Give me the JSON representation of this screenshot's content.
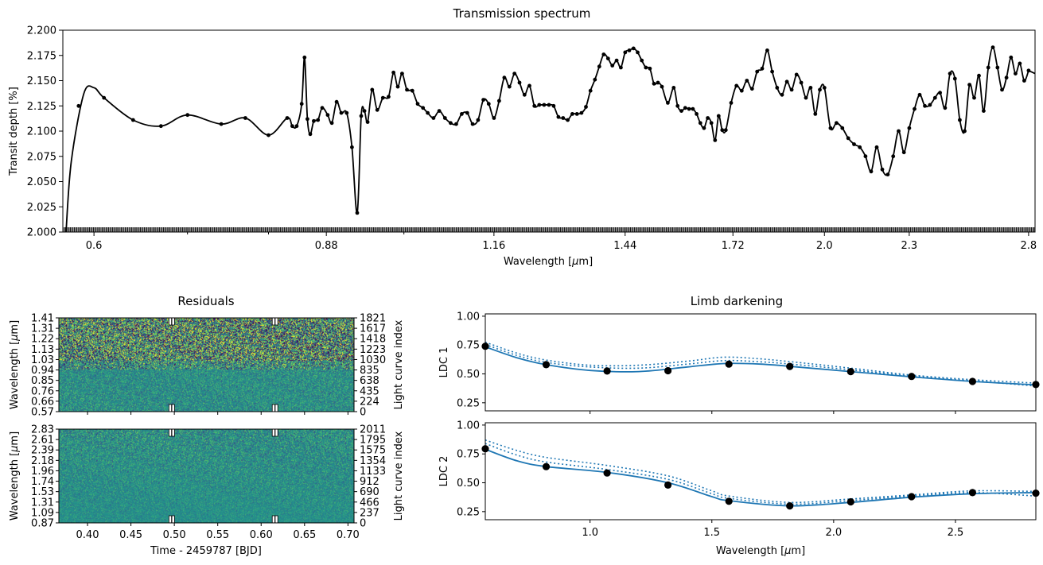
{
  "colors": {
    "spectrum": "#000000",
    "ldc_line": "#1f77b4",
    "ldc_points": "#000000",
    "residual_low": "#440154",
    "residual_mid": "#21918c",
    "residual_high": "#fde725"
  },
  "chart_data": [
    {
      "name": "transmission-spectrum",
      "type": "line",
      "title": "Transmission spectrum",
      "xlabel": "Wavelength [$\\mu$m]",
      "ylabel": "Transit depth [%]",
      "x_scale": "log",
      "xlim": [
        0.57,
        2.83
      ],
      "ylim": [
        2.0,
        2.2
      ],
      "x_ticks": [
        "0.6",
        "0.88",
        "1.16",
        "1.44",
        "1.72",
        "2.0",
        "2.3",
        "2.8"
      ],
      "x_tick_values": [
        0.6,
        0.88,
        1.16,
        1.44,
        1.72,
        2.0,
        2.3,
        2.8
      ],
      "y_ticks": [
        "2.000",
        "2.025",
        "2.050",
        "2.075",
        "2.100",
        "2.125",
        "2.150",
        "2.175",
        "2.200"
      ],
      "points": [
        [
          0.585,
          2.125
        ],
        [
          0.61,
          2.133
        ],
        [
          0.64,
          2.111
        ],
        [
          0.67,
          2.105
        ],
        [
          0.7,
          2.116
        ],
        [
          0.74,
          2.107
        ],
        [
          0.77,
          2.113
        ],
        [
          0.8,
          2.096
        ],
        [
          0.825,
          2.113
        ],
        [
          0.832,
          2.105
        ],
        [
          0.838,
          2.105
        ],
        [
          0.845,
          2.127
        ],
        [
          0.849,
          2.173
        ],
        [
          0.853,
          2.112
        ],
        [
          0.857,
          2.097
        ],
        [
          0.862,
          2.11
        ],
        [
          0.868,
          2.111
        ],
        [
          0.874,
          2.123
        ],
        [
          0.882,
          2.116
        ],
        [
          0.888,
          2.108
        ],
        [
          0.895,
          2.129
        ],
        [
          0.902,
          2.118
        ],
        [
          0.91,
          2.118
        ],
        [
          0.918,
          2.084
        ],
        [
          0.926,
          2.019
        ],
        [
          0.932,
          2.115
        ],
        [
          0.937,
          2.12
        ],
        [
          0.942,
          2.109
        ],
        [
          0.949,
          2.141
        ],
        [
          0.957,
          2.121
        ],
        [
          0.966,
          2.133
        ],
        [
          0.975,
          2.134
        ],
        [
          0.983,
          2.158
        ],
        [
          0.99,
          2.144
        ],
        [
          0.997,
          2.157
        ],
        [
          1.005,
          2.141
        ],
        [
          1.014,
          2.14
        ],
        [
          1.023,
          2.127
        ],
        [
          1.032,
          2.123
        ],
        [
          1.04,
          2.118
        ],
        [
          1.05,
          2.113
        ],
        [
          1.06,
          2.12
        ],
        [
          1.07,
          2.113
        ],
        [
          1.08,
          2.108
        ],
        [
          1.09,
          2.107
        ],
        [
          1.1,
          2.117
        ],
        [
          1.11,
          2.118
        ],
        [
          1.12,
          2.107
        ],
        [
          1.13,
          2.111
        ],
        [
          1.14,
          2.131
        ],
        [
          1.15,
          2.127
        ],
        [
          1.16,
          2.113
        ],
        [
          1.17,
          2.13
        ],
        [
          1.18,
          2.153
        ],
        [
          1.19,
          2.144
        ],
        [
          1.2,
          2.157
        ],
        [
          1.21,
          2.148
        ],
        [
          1.22,
          2.136
        ],
        [
          1.23,
          2.145
        ],
        [
          1.24,
          2.125
        ],
        [
          1.25,
          2.126
        ],
        [
          1.26,
          2.126
        ],
        [
          1.27,
          2.126
        ],
        [
          1.28,
          2.125
        ],
        [
          1.29,
          2.114
        ],
        [
          1.3,
          2.113
        ],
        [
          1.31,
          2.111
        ],
        [
          1.32,
          2.117
        ],
        [
          1.33,
          2.117
        ],
        [
          1.34,
          2.118
        ],
        [
          1.35,
          2.124
        ],
        [
          1.36,
          2.14
        ],
        [
          1.37,
          2.151
        ],
        [
          1.38,
          2.164
        ],
        [
          1.39,
          2.176
        ],
        [
          1.4,
          2.172
        ],
        [
          1.41,
          2.165
        ],
        [
          1.42,
          2.17
        ],
        [
          1.43,
          2.163
        ],
        [
          1.44,
          2.178
        ],
        [
          1.45,
          2.18
        ],
        [
          1.46,
          2.182
        ],
        [
          1.47,
          2.178
        ],
        [
          1.48,
          2.17
        ],
        [
          1.49,
          2.163
        ],
        [
          1.5,
          2.162
        ],
        [
          1.51,
          2.147
        ],
        [
          1.52,
          2.148
        ],
        [
          1.53,
          2.144
        ],
        [
          1.545,
          2.128
        ],
        [
          1.56,
          2.143
        ],
        [
          1.57,
          2.125
        ],
        [
          1.58,
          2.12
        ],
        [
          1.59,
          2.123
        ],
        [
          1.6,
          2.122
        ],
        [
          1.61,
          2.122
        ],
        [
          1.62,
          2.117
        ],
        [
          1.63,
          2.108
        ],
        [
          1.64,
          2.103
        ],
        [
          1.65,
          2.113
        ],
        [
          1.66,
          2.108
        ],
        [
          1.67,
          2.091
        ],
        [
          1.68,
          2.115
        ],
        [
          1.69,
          2.101
        ],
        [
          1.7,
          2.101
        ],
        [
          1.715,
          2.128
        ],
        [
          1.73,
          2.145
        ],
        [
          1.745,
          2.14
        ],
        [
          1.76,
          2.15
        ],
        [
          1.775,
          2.142
        ],
        [
          1.79,
          2.159
        ],
        [
          1.805,
          2.162
        ],
        [
          1.82,
          2.18
        ],
        [
          1.835,
          2.159
        ],
        [
          1.85,
          2.143
        ],
        [
          1.865,
          2.136
        ],
        [
          1.88,
          2.149
        ],
        [
          1.895,
          2.141
        ],
        [
          1.91,
          2.156
        ],
        [
          1.925,
          2.148
        ],
        [
          1.94,
          2.133
        ],
        [
          1.955,
          2.143
        ],
        [
          1.97,
          2.117
        ],
        [
          1.985,
          2.141
        ],
        [
          2.0,
          2.143
        ],
        [
          2.02,
          2.103
        ],
        [
          2.04,
          2.108
        ],
        [
          2.06,
          2.103
        ],
        [
          2.08,
          2.093
        ],
        [
          2.1,
          2.087
        ],
        [
          2.12,
          2.084
        ],
        [
          2.14,
          2.075
        ],
        [
          2.16,
          2.06
        ],
        [
          2.18,
          2.084
        ],
        [
          2.2,
          2.062
        ],
        [
          2.22,
          2.057
        ],
        [
          2.24,
          2.075
        ],
        [
          2.26,
          2.1
        ],
        [
          2.28,
          2.079
        ],
        [
          2.3,
          2.103
        ],
        [
          2.32,
          2.122
        ],
        [
          2.34,
          2.136
        ],
        [
          2.36,
          2.125
        ],
        [
          2.38,
          2.126
        ],
        [
          2.4,
          2.133
        ],
        [
          2.42,
          2.138
        ],
        [
          2.44,
          2.123
        ],
        [
          2.46,
          2.157
        ],
        [
          2.48,
          2.152
        ],
        [
          2.5,
          2.111
        ],
        [
          2.52,
          2.1
        ],
        [
          2.54,
          2.146
        ],
        [
          2.56,
          2.133
        ],
        [
          2.58,
          2.155
        ],
        [
          2.6,
          2.12
        ],
        [
          2.62,
          2.163
        ],
        [
          2.64,
          2.183
        ],
        [
          2.66,
          2.163
        ],
        [
          2.68,
          2.141
        ],
        [
          2.7,
          2.153
        ],
        [
          2.72,
          2.173
        ],
        [
          2.74,
          2.157
        ],
        [
          2.76,
          2.167
        ],
        [
          2.78,
          2.15
        ],
        [
          2.8,
          2.16
        ]
      ]
    },
    {
      "name": "residuals-top",
      "type": "heatmap",
      "title": "Residuals",
      "ylabel": "Wavelength [$\\mu$m]",
      "y2label": "Light curve index",
      "xlim": [
        0.367,
        0.707
      ],
      "y_ticks": [
        "0.57",
        "0.66",
        "0.76",
        "0.85",
        "0.94",
        "1.03",
        "1.13",
        "1.22",
        "1.31",
        "1.41"
      ],
      "y2_ticks": [
        "0",
        "224",
        "435",
        "638",
        "835",
        "1030",
        "1223",
        "1418",
        "1617",
        "1821"
      ],
      "transit_markers": [
        0.497,
        0.616
      ]
    },
    {
      "name": "residuals-bottom",
      "type": "heatmap",
      "xlabel": "Time - 2459787 [BJD]",
      "ylabel": "Wavelength [$\\mu$m]",
      "y2label": "Light curve index",
      "xlim": [
        0.367,
        0.707
      ],
      "x_ticks": [
        "0.40",
        "0.45",
        "0.50",
        "0.55",
        "0.60",
        "0.65",
        "0.70"
      ],
      "x_tick_values": [
        0.4,
        0.45,
        0.5,
        0.55,
        0.6,
        0.65,
        0.7
      ],
      "y_ticks": [
        "0.87",
        "1.09",
        "1.31",
        "1.53",
        "1.74",
        "1.96",
        "2.18",
        "2.39",
        "2.61",
        "2.83"
      ],
      "y2_ticks": [
        "0",
        "237",
        "466",
        "690",
        "912",
        "1133",
        "1354",
        "1575",
        "1795",
        "2011"
      ],
      "transit_markers": [
        0.497,
        0.616
      ]
    },
    {
      "name": "ldc-1",
      "type": "line",
      "title": "Limb darkening",
      "ylabel": "LDC 1",
      "xlim": [
        0.57,
        2.83
      ],
      "ylim": [
        0.18,
        1.02
      ],
      "y_ticks": [
        "0.25",
        "0.50",
        "0.75",
        "1.00"
      ],
      "y_tick_values": [
        0.25,
        0.5,
        0.75,
        1.0
      ],
      "x_tick_values": [
        1.0,
        1.5,
        2.0,
        2.5
      ],
      "points": [
        [
          0.57,
          0.74
        ],
        [
          0.82,
          0.58
        ],
        [
          1.07,
          0.525
        ],
        [
          1.32,
          0.528
        ],
        [
          1.57,
          0.585
        ],
        [
          1.82,
          0.565
        ],
        [
          2.07,
          0.52
        ],
        [
          2.32,
          0.478
        ],
        [
          2.57,
          0.435
        ],
        [
          2.83,
          0.408
        ]
      ],
      "model": [
        [
          0.57,
          0.735
        ],
        [
          0.7,
          0.64
        ],
        [
          0.82,
          0.58
        ],
        [
          1.0,
          0.53
        ],
        [
          1.2,
          0.52
        ],
        [
          1.4,
          0.56
        ],
        [
          1.55,
          0.59
        ],
        [
          1.7,
          0.585
        ],
        [
          1.85,
          0.56
        ],
        [
          2.07,
          0.52
        ],
        [
          2.32,
          0.475
        ],
        [
          2.57,
          0.435
        ],
        [
          2.83,
          0.405
        ]
      ],
      "upper": [
        [
          0.57,
          0.775
        ],
        [
          0.7,
          0.68
        ],
        [
          0.82,
          0.62
        ],
        [
          1.0,
          0.575
        ],
        [
          1.2,
          0.575
        ],
        [
          1.4,
          0.61
        ],
        [
          1.55,
          0.645
        ],
        [
          1.7,
          0.63
        ],
        [
          1.85,
          0.6
        ],
        [
          2.07,
          0.55
        ],
        [
          2.32,
          0.49
        ],
        [
          2.57,
          0.45
        ],
        [
          2.83,
          0.42
        ]
      ],
      "lower": [
        [
          0.57,
          0.755
        ],
        [
          0.7,
          0.66
        ],
        [
          0.82,
          0.6
        ],
        [
          1.0,
          0.56
        ],
        [
          1.2,
          0.55
        ],
        [
          1.4,
          0.585
        ],
        [
          1.55,
          0.615
        ],
        [
          1.7,
          0.605
        ],
        [
          1.85,
          0.58
        ],
        [
          2.07,
          0.535
        ],
        [
          2.32,
          0.48
        ],
        [
          2.57,
          0.44
        ],
        [
          2.83,
          0.395
        ]
      ]
    },
    {
      "name": "ldc-2",
      "type": "line",
      "xlabel": "Wavelength [$\\mu$m]",
      "ylabel": "LDC 2",
      "xlim": [
        0.57,
        2.83
      ],
      "ylim": [
        0.18,
        1.02
      ],
      "x_ticks": [
        "1.0",
        "1.5",
        "2.0",
        "2.5"
      ],
      "x_tick_values": [
        1.0,
        1.5,
        2.0,
        2.5
      ],
      "y_ticks": [
        "0.25",
        "0.50",
        "0.75",
        "1.00"
      ],
      "y_tick_values": [
        0.25,
        0.5,
        0.75,
        1.0
      ],
      "points": [
        [
          0.57,
          0.795
        ],
        [
          0.82,
          0.64
        ],
        [
          1.07,
          0.585
        ],
        [
          1.32,
          0.48
        ],
        [
          1.57,
          0.34
        ],
        [
          1.82,
          0.3
        ],
        [
          2.07,
          0.335
        ],
        [
          2.32,
          0.38
        ],
        [
          2.57,
          0.415
        ],
        [
          2.83,
          0.41
        ]
      ],
      "model": [
        [
          0.57,
          0.79
        ],
        [
          0.7,
          0.69
        ],
        [
          0.82,
          0.64
        ],
        [
          1.07,
          0.59
        ],
        [
          1.32,
          0.5
        ],
        [
          1.5,
          0.38
        ],
        [
          1.57,
          0.345
        ],
        [
          1.82,
          0.3
        ],
        [
          2.07,
          0.33
        ],
        [
          2.32,
          0.375
        ],
        [
          2.57,
          0.405
        ],
        [
          2.83,
          0.415
        ]
      ],
      "upper": [
        [
          0.57,
          0.87
        ],
        [
          0.7,
          0.78
        ],
        [
          0.82,
          0.72
        ],
        [
          1.07,
          0.65
        ],
        [
          1.32,
          0.56
        ],
        [
          1.5,
          0.43
        ],
        [
          1.57,
          0.385
        ],
        [
          1.82,
          0.33
        ],
        [
          2.07,
          0.36
        ],
        [
          2.32,
          0.395
        ],
        [
          2.57,
          0.43
        ],
        [
          2.83,
          0.425
        ]
      ],
      "lower": [
        [
          0.57,
          0.84
        ],
        [
          0.7,
          0.74
        ],
        [
          0.82,
          0.68
        ],
        [
          1.07,
          0.615
        ],
        [
          1.32,
          0.53
        ],
        [
          1.5,
          0.405
        ],
        [
          1.57,
          0.365
        ],
        [
          1.82,
          0.315
        ],
        [
          2.07,
          0.345
        ],
        [
          2.32,
          0.385
        ],
        [
          2.57,
          0.415
        ],
        [
          2.83,
          0.385
        ]
      ]
    }
  ]
}
